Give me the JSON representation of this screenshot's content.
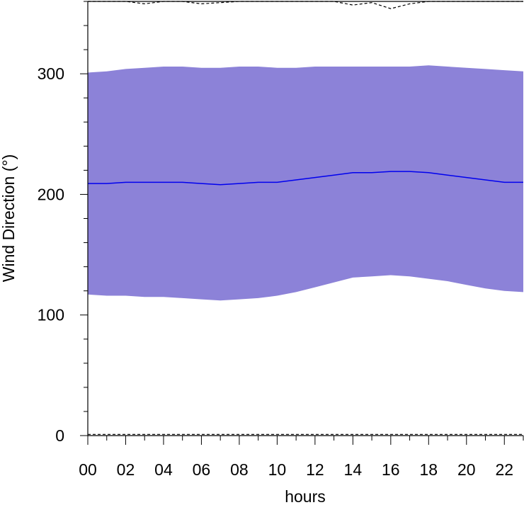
{
  "chart_data": {
    "type": "area",
    "xlabel": "hours",
    "ylabel": "Wind Direction (°)",
    "xlim": [
      0,
      23
    ],
    "ylim": [
      0,
      360
    ],
    "x_ticks": [
      "00",
      "02",
      "04",
      "06",
      "08",
      "10",
      "12",
      "14",
      "16",
      "18",
      "20",
      "22"
    ],
    "x_tick_values": [
      0,
      2,
      4,
      6,
      8,
      10,
      12,
      14,
      16,
      18,
      20,
      22
    ],
    "y_ticks": [
      "0",
      "100",
      "200",
      "300"
    ],
    "y_tick_values": [
      0,
      100,
      200,
      300
    ],
    "x": [
      0,
      1,
      2,
      3,
      4,
      5,
      6,
      7,
      8,
      9,
      10,
      11,
      12,
      13,
      14,
      15,
      16,
      17,
      18,
      19,
      20,
      21,
      22,
      23
    ],
    "band_color": "#8c82d8",
    "mean_color": "#0000ee",
    "series": [
      {
        "role": "band-upper",
        "values": [
          301,
          302,
          304,
          305,
          306,
          306,
          305,
          305,
          306,
          306,
          305,
          305,
          306,
          306,
          306,
          306,
          306,
          306,
          307,
          306,
          305,
          304,
          303,
          302
        ]
      },
      {
        "role": "band-lower",
        "values": [
          117,
          116,
          116,
          115,
          115,
          114,
          113,
          112,
          113,
          114,
          116,
          119,
          123,
          127,
          131,
          132,
          133,
          132,
          130,
          128,
          125,
          122,
          120,
          119
        ]
      },
      {
        "role": "mean",
        "values": [
          209,
          209,
          210,
          210,
          210,
          210,
          209,
          208,
          209,
          210,
          210,
          212,
          214,
          216,
          218,
          218,
          219,
          219,
          218,
          216,
          214,
          212,
          210,
          210
        ]
      },
      {
        "role": "max-dashed",
        "values": [
          360,
          360,
          360,
          358,
          360,
          360,
          358,
          359,
          360,
          360,
          360,
          360,
          360,
          360,
          357,
          359,
          354,
          358,
          360,
          360,
          360,
          360,
          360,
          360
        ]
      },
      {
        "role": "min-dashed",
        "values": [
          1,
          1,
          1,
          1,
          1,
          1,
          1,
          1,
          1,
          1,
          1,
          1,
          1,
          1,
          1,
          1,
          1,
          1,
          1,
          1,
          1,
          1,
          1,
          1
        ]
      }
    ]
  }
}
